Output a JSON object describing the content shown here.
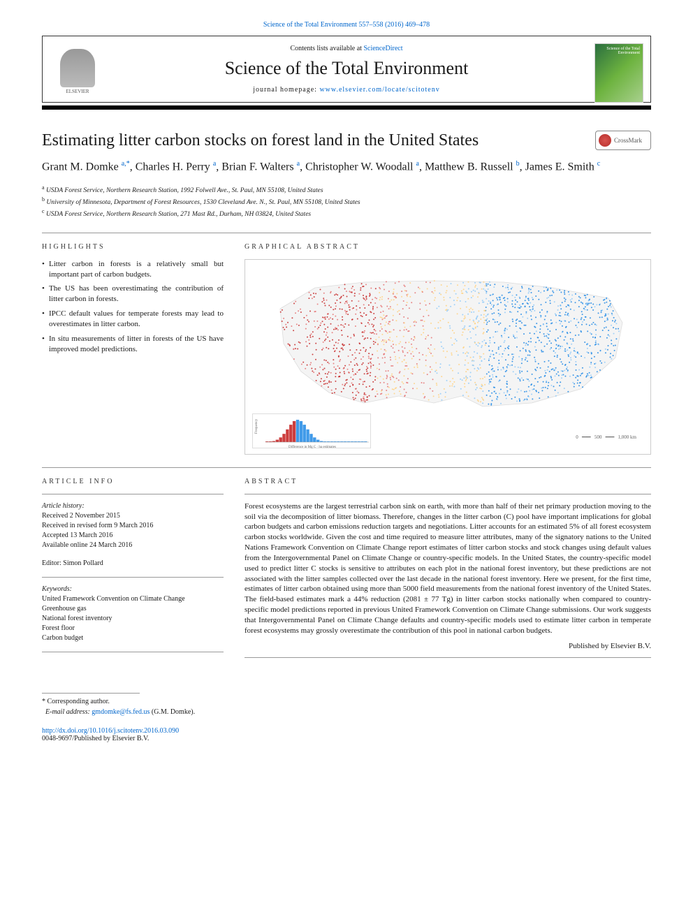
{
  "top_citation": "Science of the Total Environment 557–558 (2016) 469–478",
  "header": {
    "contents_prefix": "Contents lists available at ",
    "contents_link": "ScienceDirect",
    "journal_name": "Science of the Total Environment",
    "homepage_prefix": "journal homepage: ",
    "homepage_url": "www.elsevier.com/locate/scitotenv",
    "elsevier_label": "ELSEVIER",
    "cover_text": "Science of the Total Environment"
  },
  "crossmark_label": "CrossMark",
  "title": "Estimating litter carbon stocks on forest land in the United States",
  "authors_html": "Grant M. Domke <sup>a,*</sup>, Charles H. Perry <sup>a</sup>, Brian F. Walters <sup>a</sup>, Christopher W. Woodall <sup>a</sup>, Matthew B. Russell <sup>b</sup>, James E. Smith <sup>c</sup>",
  "authors": [
    {
      "name": "Grant M. Domke",
      "aff": "a",
      "corr": true
    },
    {
      "name": "Charles H. Perry",
      "aff": "a"
    },
    {
      "name": "Brian F. Walters",
      "aff": "a"
    },
    {
      "name": "Christopher W. Woodall",
      "aff": "a"
    },
    {
      "name": "Matthew B. Russell",
      "aff": "b"
    },
    {
      "name": "James E. Smith",
      "aff": "c"
    }
  ],
  "affiliations": [
    {
      "key": "a",
      "text": "USDA Forest Service, Northern Research Station, 1992 Folwell Ave., St. Paul, MN 55108, United States"
    },
    {
      "key": "b",
      "text": "University of Minnesota, Department of Forest Resources, 1530 Cleveland Ave. N., St. Paul, MN 55108, United States"
    },
    {
      "key": "c",
      "text": "USDA Forest Service, Northern Research Station, 271 Mast Rd., Durham, NH 03824, United States"
    }
  ],
  "labels": {
    "highlights": "HIGHLIGHTS",
    "graphical_abstract": "GRAPHICAL ABSTRACT",
    "article_info": "ARTICLE INFO",
    "abstract": "ABSTRACT"
  },
  "highlights": [
    "Litter carbon in forests is a relatively small but important part of carbon budgets.",
    "The US has been overestimating the contribution of litter carbon in forests.",
    "IPCC default values for temperate forests may lead to overestimates in litter carbon.",
    "In situ measurements of litter in forests of the US have improved model predictions."
  ],
  "graphical_abstract": {
    "type": "map-scatter",
    "region": "United States (contiguous)",
    "background_color": "#ffffff",
    "land_fill": "#f4f4f4",
    "land_stroke": "#dcdcdc",
    "point_colors": [
      "#c62828",
      "#e57373",
      "#ffd180",
      "#90caf9",
      "#1e88e5"
    ],
    "point_radius": 1.0,
    "inset": {
      "type": "histogram",
      "bars": 30,
      "peak_index": 9,
      "peak_height": 1.0,
      "colors_left": "#c62828",
      "colors_right": "#1e88e5",
      "xlabel": "Difference in Mg C · ha estimates",
      "ylabel": "Frequency",
      "border_color": "#dddddd"
    },
    "scale_text_left": "0",
    "scale_text_mid": "500",
    "scale_text_right": "1,000 km",
    "n_points_approx": 1800
  },
  "article_info": {
    "history_label": "Article history:",
    "received": "Received 2 November 2015",
    "revised": "Received in revised form 9 March 2016",
    "accepted": "Accepted 13 March 2016",
    "online": "Available online 24 March 2016",
    "editor_label": "Editor: Simon Pollard",
    "keywords_label": "Keywords:",
    "keywords": [
      "United Framework Convention on Climate Change",
      "Greenhouse gas",
      "National forest inventory",
      "Forest floor",
      "Carbon budget"
    ]
  },
  "abstract_text": "Forest ecosystems are the largest terrestrial carbon sink on earth, with more than half of their net primary production moving to the soil via the decomposition of litter biomass. Therefore, changes in the litter carbon (C) pool have important implications for global carbon budgets and carbon emissions reduction targets and negotiations. Litter accounts for an estimated 5% of all forest ecosystem carbon stocks worldwide. Given the cost and time required to measure litter attributes, many of the signatory nations to the United Nations Framework Convention on Climate Change report estimates of litter carbon stocks and stock changes using default values from the Intergovernmental Panel on Climate Change or country-specific models. In the United States, the country-specific model used to predict litter C stocks is sensitive to attributes on each plot in the national forest inventory, but these predictions are not associated with the litter samples collected over the last decade in the national forest inventory. Here we present, for the first time, estimates of litter carbon obtained using more than 5000 field measurements from the national forest inventory of the United States. The field-based estimates mark a 44% reduction (2081 ± 77 Tg) in litter carbon stocks nationally when compared to country-specific model predictions reported in previous United Framework Convention on Climate Change submissions. Our work suggests that Intergovernmental Panel on Climate Change defaults and country-specific models used to estimate litter carbon in temperate forest ecosystems may grossly overestimate the contribution of this pool in national carbon budgets.",
  "publisher_line": "Published by Elsevier B.V.",
  "corresponding": {
    "star": "*",
    "label": "Corresponding author.",
    "email_label": "E-mail address:",
    "email": "gmdomke@fs.fed.us",
    "name_paren": "(G.M. Domke)."
  },
  "doi": {
    "url": "http://dx.doi.org/10.1016/j.scitotenv.2016.03.090",
    "issn_line": "0048-9697/Published by Elsevier B.V."
  }
}
